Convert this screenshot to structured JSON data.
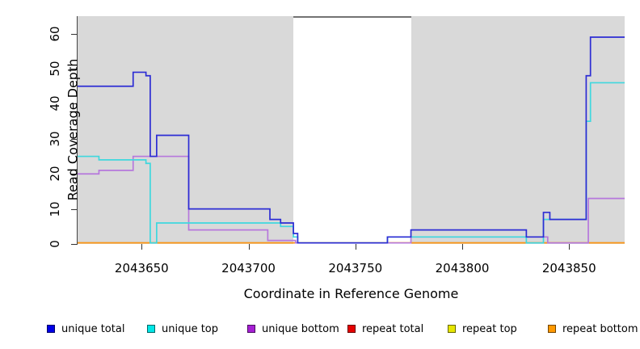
{
  "chart_data": {
    "type": "line",
    "subtype": "step-coverage-plot",
    "title": "",
    "x_axis": {
      "label": "Coordinate in Reference Genome",
      "min": 2043620,
      "max": 2043876,
      "ticks": [
        2043650,
        2043700,
        2043750,
        2043800,
        2043850
      ]
    },
    "y_axis": {
      "label": "Read Coverage Depth",
      "min": 0,
      "max": 65,
      "ticks": [
        0,
        10,
        20,
        30,
        40,
        50,
        60
      ]
    },
    "shaded_regions": {
      "color": "#d9d9d9",
      "ranges": [
        [
          2043620,
          2043721
        ],
        [
          2043776,
          2043876
        ]
      ]
    },
    "gap_marker_line": {
      "color": "#737373",
      "range": [
        2043721,
        2043776
      ]
    },
    "legend": [
      {
        "label": "unique total",
        "color": "#0000e6"
      },
      {
        "label": "unique top",
        "color": "#00e6e6"
      },
      {
        "label": "unique bottom",
        "color": "#a61fd4"
      },
      {
        "label": "repeat total",
        "color": "#e60000"
      },
      {
        "label": "repeat top",
        "color": "#e6e600"
      },
      {
        "label": "repeat bottom",
        "color": "#ff9900"
      }
    ],
    "series": [
      {
        "name": "repeat total",
        "color": "#cc1111",
        "steps": [
          [
            2043620,
            0
          ]
        ]
      },
      {
        "name": "repeat top",
        "color": "#e6e600",
        "steps": [
          [
            2043620,
            0
          ]
        ]
      },
      {
        "name": "repeat bottom",
        "color": "#ff9614",
        "steps": [
          [
            2043620,
            0
          ]
        ]
      },
      {
        "name": "unique bottom",
        "color": "#b678dc",
        "steps": [
          [
            2043620,
            20
          ],
          [
            2043630,
            21
          ],
          [
            2043646,
            25
          ],
          [
            2043672,
            4
          ],
          [
            2043709,
            1
          ],
          [
            2043722,
            0
          ],
          [
            2043776,
            2
          ],
          [
            2043840,
            0
          ],
          [
            2043859,
            13
          ]
        ]
      },
      {
        "name": "unique top",
        "color": "#3fd8de",
        "steps": [
          [
            2043620,
            25
          ],
          [
            2043630,
            24
          ],
          [
            2043652,
            23
          ],
          [
            2043654,
            0
          ],
          [
            2043657,
            6
          ],
          [
            2043715,
            5
          ],
          [
            2043721,
            2
          ],
          [
            2043723,
            0
          ],
          [
            2043765,
            2
          ],
          [
            2043830,
            0
          ],
          [
            2043838,
            7
          ],
          [
            2043858,
            35
          ],
          [
            2043860,
            46
          ]
        ]
      },
      {
        "name": "unique total",
        "color": "#2d2dd4",
        "steps": [
          [
            2043620,
            45
          ],
          [
            2043646,
            49
          ],
          [
            2043652,
            48
          ],
          [
            2043654,
            25
          ],
          [
            2043657,
            31
          ],
          [
            2043672,
            10
          ],
          [
            2043710,
            7
          ],
          [
            2043715,
            6
          ],
          [
            2043721,
            3
          ],
          [
            2043723,
            0
          ],
          [
            2043765,
            2
          ],
          [
            2043776,
            4
          ],
          [
            2043830,
            2
          ],
          [
            2043838,
            9
          ],
          [
            2043841,
            7
          ],
          [
            2043858,
            48
          ],
          [
            2043860,
            59
          ]
        ]
      }
    ]
  }
}
